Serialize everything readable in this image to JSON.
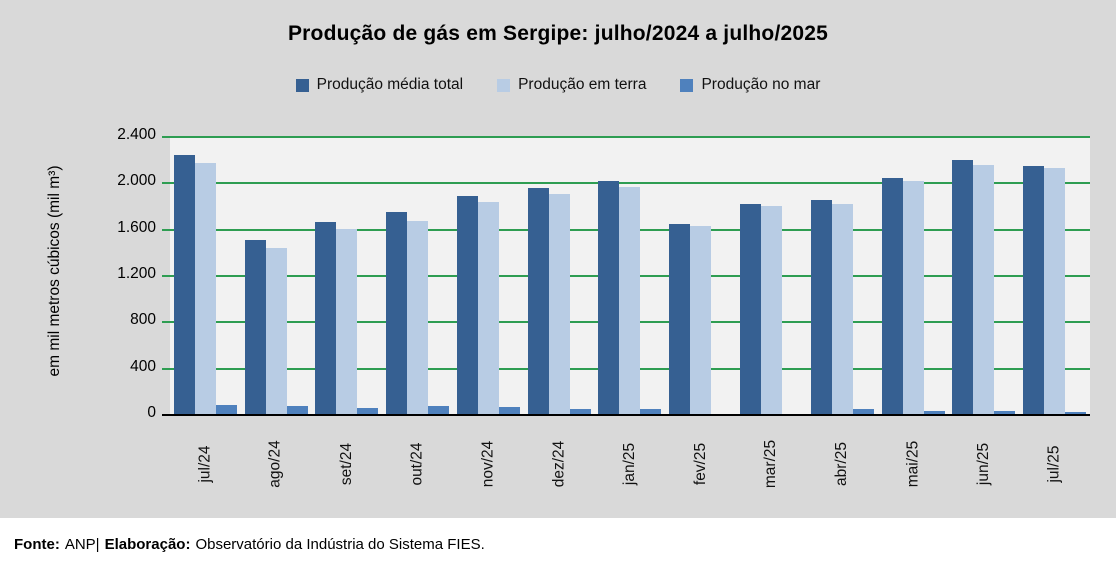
{
  "title": "Produção de gás em Sergipe: julho/2024 a julho/2025",
  "footer": {
    "fonte_label": "Fonte:",
    "fonte_value": "ANP|",
    "elaboracao_label": "Elaboração:",
    "elaboracao_value": "Observatório da Indústria do Sistema FIES."
  },
  "colors": {
    "background": "#D9D9D9",
    "plot_background": "#F2F2F2",
    "grid": "#2E9D52",
    "axis": "#000000",
    "footer_background": "#FFFFFF",
    "series_total": "#366092",
    "series_terra": "#B8CCE4",
    "series_mar": "#4F81BD"
  },
  "chart_data": {
    "type": "bar",
    "title": "Produção de gás em Sergipe: julho/2024 a julho/2025",
    "xlabel": "",
    "ylabel": "em mil metros cúbicos (mil m³)",
    "ylim": [
      0,
      2400
    ],
    "ytick_step": 400,
    "ytick_labels": [
      "0",
      "400",
      "800",
      "1.200",
      "1.600",
      "2.000",
      "2.400"
    ],
    "grid": true,
    "grid_color": "#2E9D52",
    "legend_position": "top",
    "categories": [
      "jul/24",
      "ago/24",
      "set/24",
      "out/24",
      "nov/24",
      "dez/24",
      "jan/25",
      "fev/25",
      "mar/25",
      "abr/25",
      "mai/25",
      "jun/25",
      "jul/25"
    ],
    "series": [
      {
        "name": "Produção média total",
        "color": "#366092",
        "values": [
          2240,
          1500,
          1660,
          1740,
          1880,
          1950,
          2010,
          1640,
          1810,
          1850,
          2040,
          2190,
          2140
        ]
      },
      {
        "name": "Produção em terra",
        "color": "#B8CCE4",
        "values": [
          2170,
          1430,
          1600,
          1670,
          1830,
          1900,
          1960,
          1620,
          1800,
          1810,
          2010,
          2150,
          2120
        ]
      },
      {
        "name": "Produção no mar",
        "color": "#4F81BD",
        "values": [
          75,
          70,
          50,
          70,
          60,
          45,
          40,
          0,
          0,
          40,
          30,
          30,
          20
        ]
      }
    ]
  }
}
